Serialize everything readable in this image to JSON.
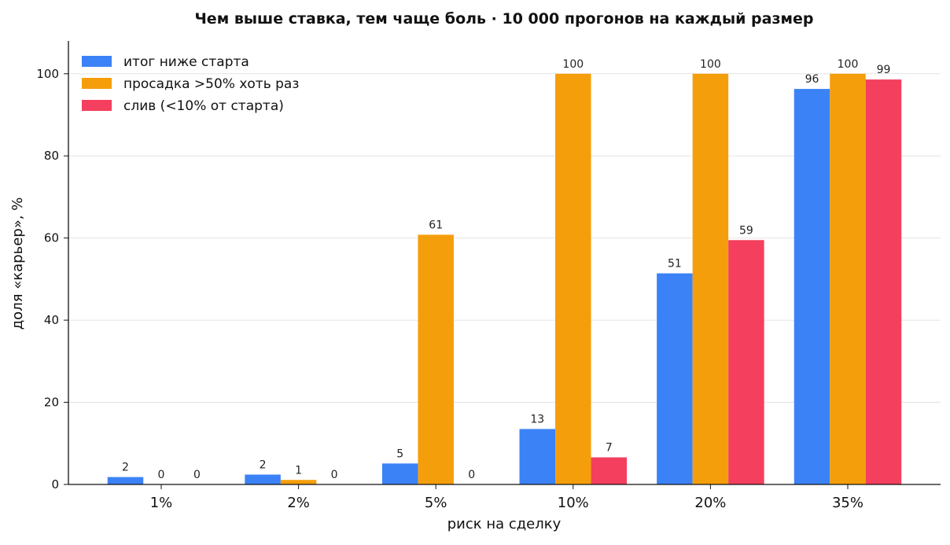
{
  "chart_data": {
    "type": "bar",
    "title": "Чем выше ставка, тем чаще боль  ·  10 000 прогонов на каждый размер",
    "xlabel": "риск на сделку",
    "ylabel": "доля «карьер», %",
    "categories": [
      "1%",
      "2%",
      "5%",
      "10%",
      "20%",
      "35%"
    ],
    "ylim": [
      0,
      108
    ],
    "yticks": [
      0,
      20,
      40,
      60,
      80,
      100
    ],
    "grid": "horizontal",
    "legend_position": "top-left",
    "series": [
      {
        "name": "итог ниже старта",
        "color": "#3b82f6",
        "values": [
          1.8,
          2.4,
          5.1,
          13.5,
          51.4,
          96.3
        ],
        "labels": [
          "2",
          "2",
          "5",
          "13",
          "51",
          "96"
        ]
      },
      {
        "name": "просадка >50% хоть раз",
        "color": "#f59e0b",
        "values": [
          0,
          1.1,
          60.8,
          100,
          100,
          100
        ],
        "labels": [
          "0",
          "1",
          "61",
          "100",
          "100",
          "100"
        ]
      },
      {
        "name": "слив (<10% от старта)",
        "color": "#f43f5e",
        "values": [
          0,
          0,
          0,
          6.6,
          59.5,
          98.6
        ],
        "labels": [
          "0",
          "0",
          "0",
          "7",
          "59",
          "99"
        ]
      }
    ]
  }
}
